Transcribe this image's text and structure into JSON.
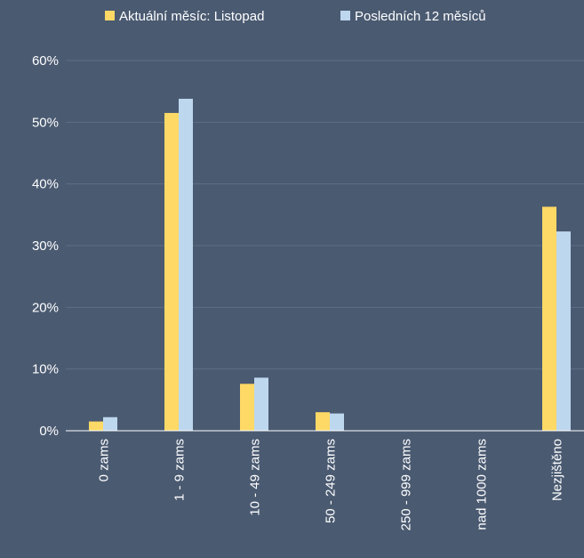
{
  "chart_data": {
    "type": "bar",
    "categories": [
      "0 zams",
      "1 - 9 zams",
      "10 - 49 zams",
      "50 - 249 zams",
      "250 - 999 zams",
      "nad 1000 zams",
      "Nezjištěno"
    ],
    "series": [
      {
        "name": "Aktuální měsíc: Listopad",
        "values": [
          1.5,
          51.5,
          7.6,
          3.0,
          0,
          0,
          36.3
        ],
        "color": "#ffd966"
      },
      {
        "name": "Posledních 12 měsíců",
        "values": [
          2.2,
          53.8,
          8.6,
          2.8,
          0,
          0,
          32.3
        ],
        "color": "#bdd7ee"
      }
    ],
    "yaxis": {
      "min": 0,
      "max": 60,
      "step": 10,
      "tick_labels": [
        "0%",
        "10%",
        "20%",
        "30%",
        "40%",
        "50%",
        "60%"
      ]
    },
    "grid": true,
    "legend_position": "top",
    "background_color": "#4a5a71",
    "grid_color": "#5d6e86",
    "axis_color": "#ffffff"
  }
}
